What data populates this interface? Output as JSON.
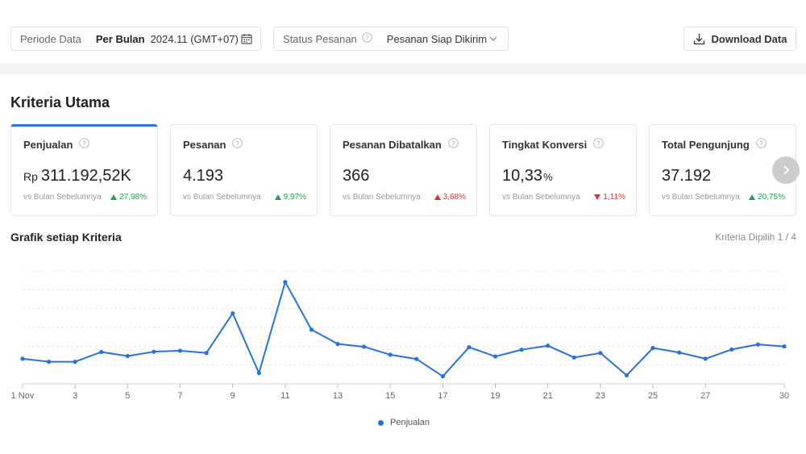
{
  "filters": {
    "period_label": "Periode Data",
    "period_mode": "Per Bulan",
    "period_value": "2024.11 (GMT+07)",
    "status_label": "Status Pesanan",
    "status_value": "Pesanan Siap Dikirim"
  },
  "download_label": "Download Data",
  "section_title": "Kriteria Utama",
  "cards": [
    {
      "title": "Penjualan",
      "prefix": "Rp",
      "value": "311.192,52K",
      "suffix": "",
      "compare": "vs Bulan Sebelumnya",
      "delta": "27,98%",
      "direction": "up"
    },
    {
      "title": "Pesanan",
      "prefix": "",
      "value": "4.193",
      "suffix": "",
      "compare": "vs Bulan Sebelumnya",
      "delta": "9,97%",
      "direction": "up"
    },
    {
      "title": "Pesanan Dibatalkan",
      "prefix": "",
      "value": "366",
      "suffix": "",
      "compare": "vs Bulan Sebelumnya",
      "delta": "3,68%",
      "direction": "up_red"
    },
    {
      "title": "Tingkat Konversi",
      "prefix": "",
      "value": "10,33",
      "suffix": "%",
      "compare": "vs Bulan Sebelumnya",
      "delta": "1,11%",
      "direction": "down"
    },
    {
      "title": "Total Pengunjung",
      "prefix": "",
      "value": "37.192",
      "suffix": "",
      "compare": "vs Bulan Sebelumnya",
      "delta": "20,75%",
      "direction": "up"
    }
  ],
  "chart_title": "Grafik setiap Kriteria",
  "chart_selected": "Kriteria Dipilih 1 / 4",
  "colors": {
    "accent": "#2673dd",
    "up": "#2a9d58",
    "down": "#dd3333"
  },
  "chart_data": {
    "type": "line",
    "x": [
      1,
      2,
      3,
      4,
      5,
      6,
      7,
      8,
      9,
      10,
      11,
      12,
      13,
      14,
      15,
      16,
      17,
      18,
      19,
      20,
      21,
      22,
      23,
      24,
      25,
      26,
      27,
      28,
      29,
      30
    ],
    "x_tick_labels": [
      "1 Nov",
      "3",
      "5",
      "7",
      "9",
      "11",
      "13",
      "15",
      "17",
      "19",
      "21",
      "23",
      "25",
      "27",
      "30"
    ],
    "x_tick_values": [
      1,
      3,
      5,
      7,
      9,
      11,
      13,
      15,
      17,
      19,
      21,
      23,
      25,
      27,
      30
    ],
    "series": [
      {
        "name": "Penjualan",
        "values": [
          10.0,
          8.8,
          8.8,
          12.7,
          11.1,
          12.8,
          13.2,
          12.3,
          28.1,
          4.3,
          40.6,
          21.6,
          15.9,
          14.8,
          11.6,
          9.9,
          3.0,
          14.6,
          10.9,
          13.6,
          15.2,
          10.5,
          12.3,
          3.4,
          14.3,
          12.5,
          10.0,
          13.7,
          15.7,
          14.9
        ]
      }
    ],
    "ylim": [
      0,
      45
    ],
    "grid": true,
    "legend": "bottom-center"
  }
}
